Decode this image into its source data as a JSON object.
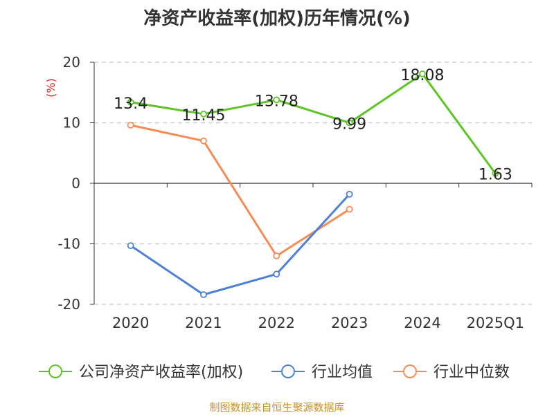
{
  "title": "净资产收益率(加权)历年情况(%)",
  "source": "制图数据来自恒生聚源数据库",
  "chart_data": {
    "type": "line",
    "ylabel": "(%)",
    "ylim": [
      -20,
      20
    ],
    "yticks": [
      20,
      10,
      0,
      -10,
      -20
    ],
    "categories": [
      "2020",
      "2021",
      "2022",
      "2023",
      "2024",
      "2025Q1"
    ],
    "grid": true,
    "legend_position": "bottom",
    "series": [
      {
        "name": "公司净资产收益率(加权)",
        "color": "#5cc524",
        "values": [
          13.4,
          11.45,
          13.78,
          9.99,
          18.08,
          1.63
        ],
        "labels": [
          "13.4",
          "11.45",
          "13.78",
          "9.99",
          "18.08",
          "1.63"
        ]
      },
      {
        "name": "行业均值",
        "color": "#4d80d6",
        "values": [
          -10.3,
          -18.4,
          -15.0,
          -1.8,
          null,
          null
        ]
      },
      {
        "name": "行业中位数",
        "color": "#f78b56",
        "values": [
          9.6,
          7.0,
          -12.0,
          -4.3,
          null,
          null
        ]
      }
    ]
  }
}
